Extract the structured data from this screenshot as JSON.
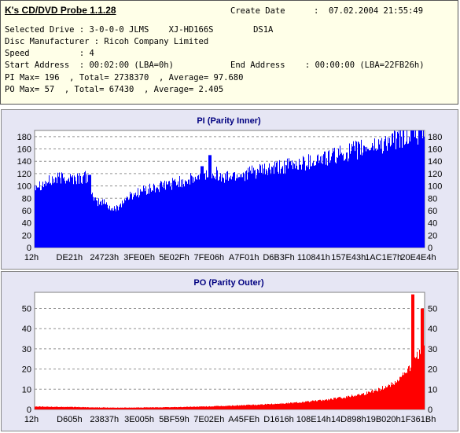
{
  "header": {
    "app_title": "K's CD/DVD Probe 1.1.28",
    "create_date_label": "Create Date",
    "create_date_value": ":  07.02.2004 21:55:49",
    "drive_line": "Selected Drive : 3-0-0-0 JLMS    XJ-HD166S        DS1A",
    "manufacturer_line": "Disc Manufacturer : Ricoh Company Limited",
    "speed_line": "Speed          : 4",
    "start_line": "Start Address  : 00:02:00 (LBA=0h)",
    "end_line": "End Address    : 00:00:00 (LBA=22FB26h)",
    "pi_line": "PI Max= 196  , Total= 2738370  , Average= 97.680",
    "po_line": "PO Max= 57  , Total= 67430  , Average= 2.405"
  },
  "chart_data": [
    {
      "type": "area",
      "title": "PI (Parity Inner)",
      "xlabel": "",
      "ylabel": "",
      "ylim": [
        0,
        190
      ],
      "y_ticks": [
        0,
        20,
        40,
        60,
        80,
        100,
        120,
        140,
        160,
        180
      ],
      "x_tick_labels": [
        "12h",
        "DE21h",
        "24723h",
        "3FE0Eh",
        "5E02Fh",
        "7FE06h",
        "A7F01h",
        "D6B3Fh",
        "110841h",
        "157E43h",
        "1AC1E7h",
        "20E4E4h"
      ],
      "grid": true,
      "color": "#0000ff",
      "x": [
        0,
        2,
        4,
        6,
        8,
        10,
        12,
        14,
        15,
        16,
        18,
        20,
        22,
        24,
        26,
        28,
        30,
        32,
        34,
        36,
        38,
        40,
        42,
        44,
        46,
        48,
        50,
        52,
        54,
        56,
        58,
        60,
        62,
        64,
        66,
        68,
        70,
        72,
        74,
        76,
        78,
        80,
        82,
        84,
        86,
        88,
        90,
        92,
        94,
        96,
        98,
        100
      ],
      "values": [
        103,
        103,
        108,
        112,
        114,
        112,
        113,
        114,
        75,
        74,
        73,
        60,
        70,
        82,
        88,
        93,
        95,
        98,
        102,
        105,
        108,
        110,
        112,
        118,
        125,
        112,
        116,
        118,
        120,
        122,
        124,
        126,
        128,
        131,
        133,
        136,
        139,
        142,
        144,
        147,
        150,
        154,
        157,
        160,
        163,
        166,
        170,
        174,
        177,
        181,
        184,
        186
      ],
      "peaks": [
        {
          "x": 14,
          "y": 118
        },
        {
          "x": 43,
          "y": 132
        },
        {
          "x": 45,
          "y": 150
        },
        {
          "x": 97,
          "y": 196
        }
      ]
    },
    {
      "type": "area",
      "title": "PO (Parity Outer)",
      "xlabel": "",
      "ylabel": "",
      "ylim": [
        0,
        58
      ],
      "y_ticks": [
        0,
        10,
        20,
        30,
        40,
        50
      ],
      "x_tick_labels": [
        "12h",
        "D605h",
        "23837h",
        "3E005h",
        "5BF59h",
        "7E02Eh",
        "A45FEh",
        "D1616h",
        "108E14h",
        "14D898h",
        "19B020h",
        "1F361Bh"
      ],
      "grid": true,
      "color": "#ff0000",
      "x": [
        0,
        5,
        10,
        15,
        20,
        25,
        30,
        35,
        40,
        45,
        50,
        55,
        60,
        65,
        70,
        75,
        80,
        85,
        90,
        92,
        94,
        96,
        98,
        100
      ],
      "values": [
        1.5,
        1.3,
        1.2,
        1.0,
        0.9,
        0.9,
        1.0,
        1.1,
        1.3,
        1.5,
        1.8,
        2.2,
        2.6,
        3.1,
        3.8,
        4.8,
        6.2,
        8.0,
        11,
        13,
        16,
        20,
        26,
        30
      ],
      "peaks": [
        {
          "x": 97,
          "y": 57
        },
        {
          "x": 99.5,
          "y": 50
        }
      ]
    }
  ]
}
